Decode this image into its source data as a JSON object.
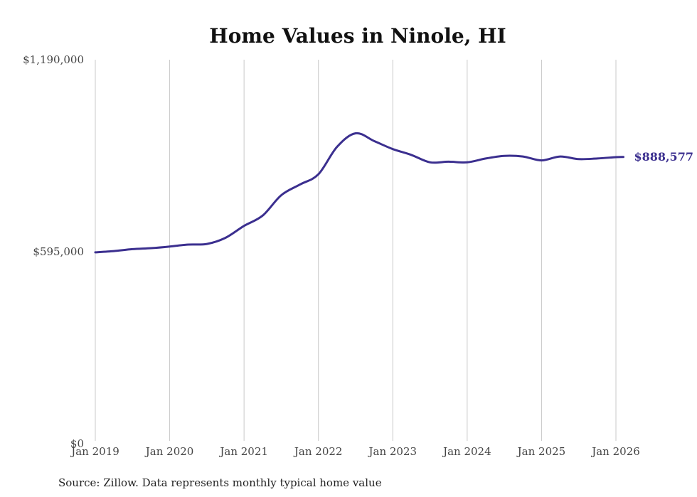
{
  "chart_data": {
    "type": "line",
    "title": "Home Values in Ninole, HI",
    "xlabel": "",
    "ylabel": "",
    "ylim": [
      0,
      1190000
    ],
    "y_ticks": [
      {
        "value": 0,
        "label": "$0"
      },
      {
        "value": 595000,
        "label": "$595,000"
      },
      {
        "value": 1190000,
        "label": "$1,190,000"
      }
    ],
    "x_ticks": [
      {
        "value": 2019.0,
        "label": "Jan 2019"
      },
      {
        "value": 2020.0,
        "label": "Jan 2020"
      },
      {
        "value": 2021.0,
        "label": "Jan 2021"
      },
      {
        "value": 2022.0,
        "label": "Jan 2022"
      },
      {
        "value": 2023.0,
        "label": "Jan 2023"
      },
      {
        "value": 2024.0,
        "label": "Jan 2024"
      },
      {
        "value": 2025.0,
        "label": "Jan 2025"
      },
      {
        "value": 2026.0,
        "label": "Jan 2026"
      }
    ],
    "grid": "vertical",
    "series": [
      {
        "name": "Typical home value",
        "color": "#3b2f8f",
        "end_label": "$888,577",
        "x": [
          2019.0,
          2019.25,
          2019.5,
          2019.75,
          2020.0,
          2020.25,
          2020.5,
          2020.75,
          2021.0,
          2021.25,
          2021.5,
          2021.75,
          2022.0,
          2022.25,
          2022.5,
          2022.75,
          2023.0,
          2023.25,
          2023.5,
          2023.75,
          2024.0,
          2024.25,
          2024.5,
          2024.75,
          2025.0,
          2025.25,
          2025.5,
          2025.75,
          2026.0,
          2026.1
        ],
        "values": [
          593000,
          597000,
          603000,
          606000,
          611000,
          617000,
          619000,
          638000,
          675000,
          707000,
          770000,
          803000,
          835000,
          920000,
          962000,
          938000,
          913000,
          895000,
          872000,
          874000,
          872000,
          884000,
          892000,
          890000,
          878000,
          890000,
          882000,
          884000,
          888000,
          888577
        ]
      }
    ]
  },
  "source_note": "Source: Zillow. Data represents monthly typical home value"
}
